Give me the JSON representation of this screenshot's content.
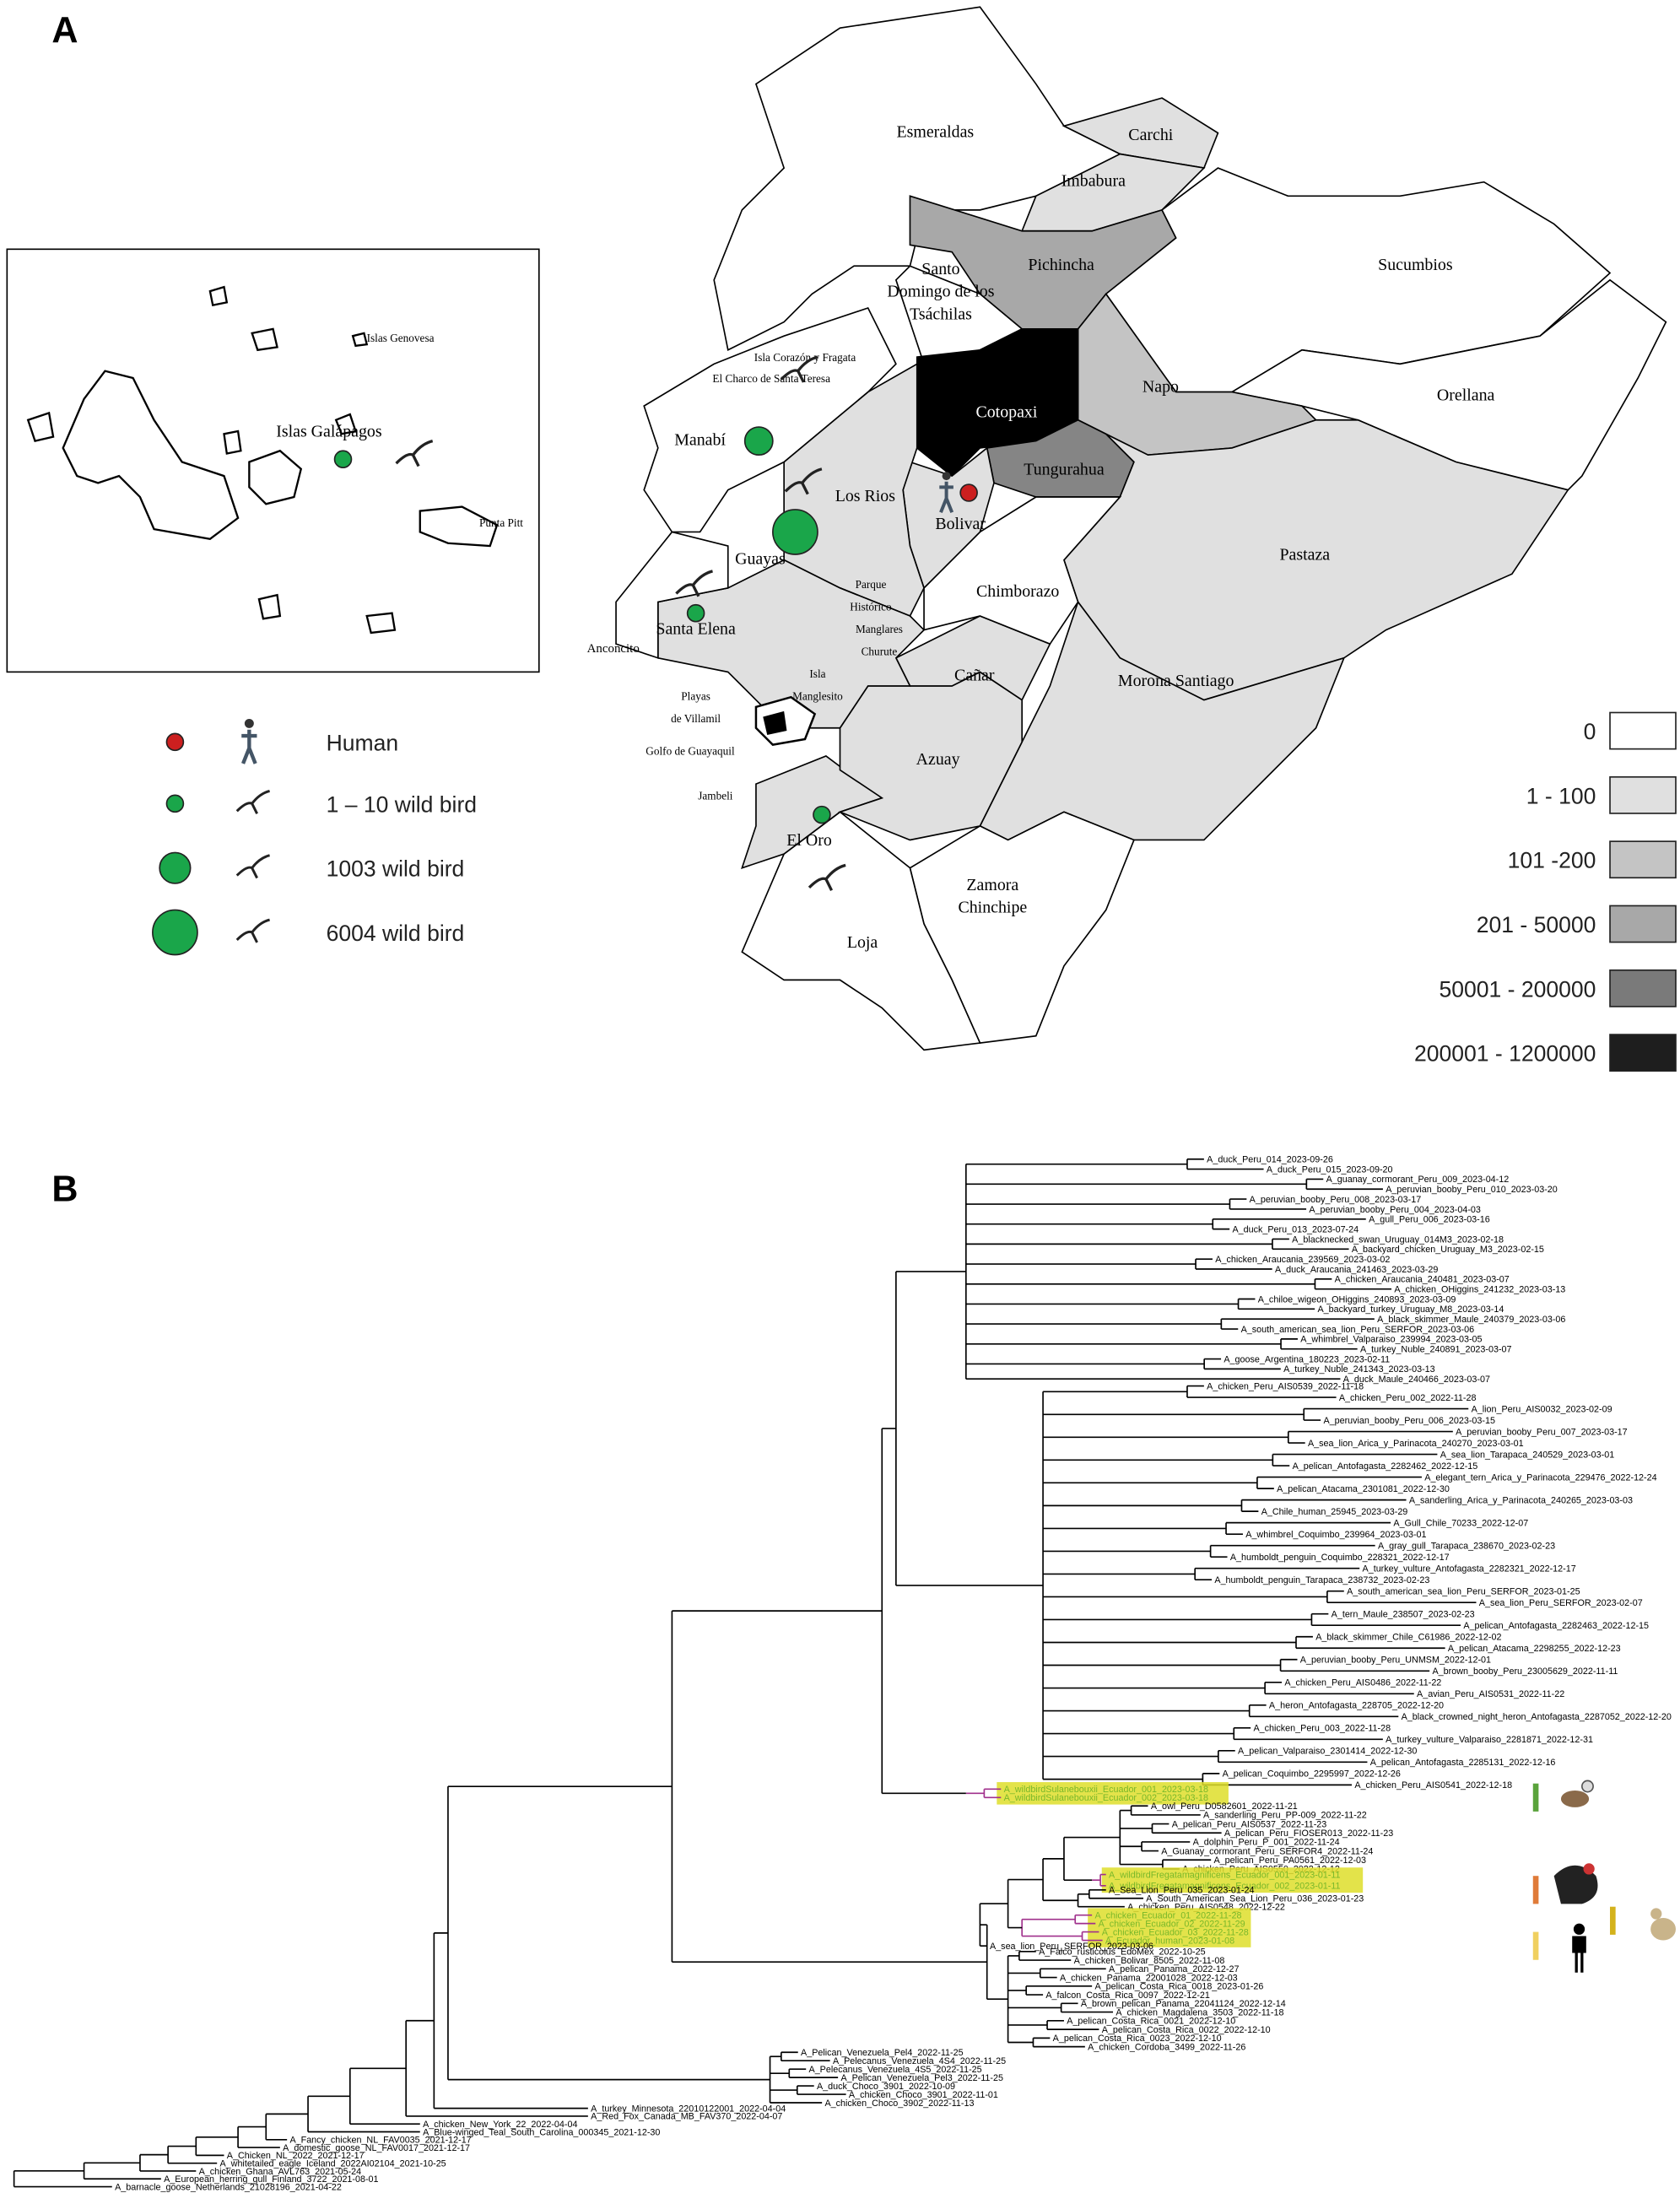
{
  "panels": {
    "a": "A",
    "b": "B"
  },
  "map": {
    "provinces": [
      {
        "name": "Esmeraldas",
        "color": "#ffffff"
      },
      {
        "name": "Carchi",
        "color": "#e0e0e0"
      },
      {
        "name": "Imbabura",
        "color": "#e0e0e0"
      },
      {
        "name": "Pichincha",
        "color": "#a8a8a8"
      },
      {
        "name": "Sucumbios",
        "color": "#ffffff"
      },
      {
        "name": "Orellana",
        "color": "#ffffff"
      },
      {
        "name": "Napo",
        "color": "#c4c4c4"
      },
      {
        "name": [
          "Santo",
          "Domingo de los",
          "Tsáchilas"
        ],
        "color": "#ffffff"
      },
      {
        "name": "Cotopaxi",
        "color": "#000000"
      },
      {
        "name": "Tungurahua",
        "color": "#858585"
      },
      {
        "name": "Pastaza",
        "color": "#e0e0e0"
      },
      {
        "name": "Morona Santiago",
        "color": "#e0e0e0"
      },
      {
        "name": [
          "Zamora",
          "Chinchipe"
        ],
        "color": "#ffffff"
      },
      {
        "name": "Loja",
        "color": "#ffffff"
      },
      {
        "name": "El Oro",
        "color": "#e0e0e0"
      },
      {
        "name": "Azuay",
        "color": "#e0e0e0"
      },
      {
        "name": "Cañar",
        "color": "#e0e0e0"
      },
      {
        "name": "Chimborazo",
        "color": "#ffffff"
      },
      {
        "name": "Bolivar",
        "color": "#e0e0e0"
      },
      {
        "name": "Los Rios",
        "color": "#e0e0e0"
      },
      {
        "name": "Guayas",
        "color": "#e0e0e0"
      },
      {
        "name": "Santa Elena",
        "color": "#ffffff"
      },
      {
        "name": "Manabí",
        "color": "#ffffff"
      }
    ],
    "places": [
      [
        "Isla Corazón  y Fragata"
      ],
      [
        "El Charco de Santa Teresa"
      ],
      [
        "Parque",
        "Histórico"
      ],
      [
        "Manglares",
        "Churute"
      ],
      [
        "Isla",
        "Manglesito"
      ],
      [
        "Playas",
        "de Villamil"
      ],
      [
        "Golfo de Guayaquil"
      ],
      [
        "Jambeli"
      ],
      [
        "Anconcito"
      ],
      [
        "Islas Galápagos"
      ],
      [
        "Islas Genovesa"
      ],
      [
        "Punta Pitt"
      ]
    ],
    "legend_cases": [
      {
        "label": "Human",
        "color": "#cc1f1f"
      },
      {
        "label": "1 – 10 wild bird",
        "color": "#1aa64a"
      },
      {
        "label": "1003 wild bird",
        "color": "#1aa64a"
      },
      {
        "label": "6004 wild bird",
        "color": "#1aa64a"
      }
    ],
    "legend_bins": [
      {
        "label": "0",
        "color": "#ffffff"
      },
      {
        "label": "1 - 100",
        "color": "#e0e0e0"
      },
      {
        "label": "101 -200",
        "color": "#c4c4c4"
      },
      {
        "label": "201 - 50000",
        "color": "#a8a8a8"
      },
      {
        "label": "50001 - 200000",
        "color": "#7a7a7a"
      },
      {
        "label": "200001 - 1200000",
        "color": "#1e1e1e"
      }
    ]
  },
  "tree": {
    "highlight_color": "#78b82a",
    "highlight_fill": "#dede2a",
    "highlight_branch": "#a0308c",
    "clades": [
      {
        "leaves": [
          "A_duck_Peru_014_2023-09-26",
          "A_duck_Peru_015_2023-09-20",
          "A_guanay_cormorant_Peru_009_2023-04-12",
          "A_peruvian_booby_Peru_010_2023-03-20",
          "A_peruvian_booby_Peru_008_2023-03-17",
          "A_peruvian_booby_Peru_004_2023-04-03",
          "A_gull_Peru_006_2023-03-16",
          "A_duck_Peru_013_2023-07-24",
          "A_blacknecked_swan_Uruguay_014M3_2023-02-18",
          "A_backyard_chicken_Uruguay_M3_2023-02-15",
          "A_chicken_Araucania_239569_2023-03-02",
          "A_duck_Araucania_241463_2023-03-29",
          "A_chicken_Araucania_240481_2023-03-07",
          "A_chicken_OHiggins_241232_2023-03-13",
          "A_chiloe_wigeon_OHiggins_240893_2023-03-09",
          "A_backyard_turkey_Uruguay_M8_2023-03-14",
          "A_black_skimmer_Maule_240379_2023-03-06",
          "A_south_american_sea_lion_Peru_SERFOR_2023-03-06",
          "A_whimbrel_Valparaiso_239994_2023-03-05",
          "A_turkey_Nuble_240891_2023-03-07",
          "A_goose_Argentina_180223_2023-02-11",
          "A_turkey_Nuble_241343_2023-03-13",
          "A_duck_Maule_240466_2023-03-07"
        ]
      },
      {
        "leaves": [
          "A_chicken_Peru_AIS0539_2022-11-18",
          "A_chicken_Peru_002_2022-11-28",
          "A_lion_Peru_AIS0032_2023-02-09",
          "A_peruvian_booby_Peru_006_2023-03-15",
          "A_peruvian_booby_Peru_007_2023-03-17",
          "A_sea_lion_Arica_y_Parinacota_240270_2023-03-01",
          "A_sea_lion_Tarapaca_240529_2023-03-01",
          "A_pelican_Antofagasta_2282462_2022-12-15",
          "A_elegant_tern_Arica_y_Parinacota_229476_2022-12-24",
          "A_pelican_Atacama_2301081_2022-12-30",
          "A_sanderling_Arica_y_Parinacota_240265_2023-03-03",
          "A_Chile_human_25945_2023-03-29",
          "A_Gull_Chile_70233_2022-12-07",
          "A_whimbrel_Coquimbo_239964_2023-03-01",
          "A_gray_gull_Tarapaca_238670_2023-02-23",
          "A_humboldt_penguin_Coquimbo_228321_2022-12-17",
          "A_turkey_vulture_Antofagasta_2282321_2022-12-17",
          "A_humboldt_penguin_Tarapaca_238732_2023-02-23",
          "A_south_american_sea_lion_Peru_SERFOR_2023-01-25",
          "A_sea_lion_Peru_SERFOR_2023-02-07",
          "A_tern_Maule_238507_2023-02-23",
          "A_pelican_Antofagasta_2282463_2022-12-15",
          "A_black_skimmer_Chile_C61986_2022-12-02",
          "A_pelican_Atacama_2298255_2022-12-23",
          "A_peruvian_booby_Peru_UNMSM_2022-12-01",
          "A_brown_booby_Peru_23005629_2022-11-11",
          "A_chicken_Peru_AIS0486_2022-11-22",
          "A_avian_Peru_AIS0531_2022-11-22",
          "A_heron_Antofagasta_228705_2022-12-20",
          "A_black_crowned_night_heron_Antofagasta_2287052_2022-12-20",
          "A_chicken_Peru_003_2022-11-28",
          "A_turkey_vulture_Valparaiso_2281871_2022-12-31",
          "A_pelican_Valparaiso_2301414_2022-12-30",
          "A_pelican_Antofagasta_2285131_2022-12-16",
          "A_pelican_Coquimbo_2295997_2022-12-26",
          "A_chicken_Peru_AIS0541_2022-12-18"
        ]
      },
      {
        "highlight": true,
        "leaves": [
          "A_wildbirdSulanebouxii_Ecuador_001_2023-03-18",
          "A_wildbirdSulanebouxii_Ecuador_002_2023-03-18"
        ]
      },
      {
        "leaves": [
          "A_owl_Peru_D0582601_2022-11-21",
          "A_sanderling_Peru_PP-009_2022-11-22",
          "A_pelican_Peru_AIS0537_2022-11-23",
          "A_pelican_Peru_FIOSER013_2022-11-23",
          "A_dolphin_Peru_P_001_2022-11-24",
          "A_Guanay_cormorant_Peru_SERFOR4_2022-11-24",
          "A_pelican_Peru_PA0561_2022-12-03",
          "A_chicken_Peru_AIS0550_2022-12-12"
        ]
      },
      {
        "highlight": true,
        "leaves": [
          "A_wildbirdFregatamagnificens_Ecuador_001_2023-01-11",
          "A_wildbirdFregatamagnificens_Ecuador_002_2023-01-11"
        ]
      },
      {
        "leaves": [
          "A_Sea_Lion_Peru_035_2023-01-24",
          "A_South_American_Sea_Lion_Peru_036_2023-01-23",
          "A_chicken_Peru_AIS0548_2022-12-22"
        ]
      },
      {
        "highlight": true,
        "leaves": [
          "A_chicken_Ecuador_01_2022-11-28",
          "A_chicken_Ecuador_02_2022-11-29",
          "A_chicken_Ecuador_03_2022-11-28",
          "A_Ecuador_human_2023-01-08"
        ]
      },
      {
        "leaves": [
          "A_sea_lion_Peru_SERFOR_2023-03-06"
        ]
      },
      {
        "leaves": [
          "A_Falco_rusticolus_EdoMex_2022-10-25",
          "A_chicken_Bolivar_8505_2022-11-08",
          "A_pelican_Panama_2022-12-27",
          "A_chicken_Panama_22001028_2022-12-03",
          "A_pelican_Costa_Rica_0018_2023-01-26",
          "A_falcon_Costa_Rica_0097_2022-12-21",
          "A_brown_pelican_Panama_22041124_2022-12-14",
          "A_chicken_Magdalena_3503_2022-11-18",
          "A_pelican_Costa_Rica_0021_2022-12-10",
          "A_pelican_Costa_Rica_0022_2022-12-10",
          "A_pelican_Costa_Rica_0023_2022-12-10",
          "A_chicken_Cordoba_3499_2022-11-26"
        ]
      },
      {
        "leaves": [
          "A_Pelican_Venezuela_Pel4_2022-11-25",
          "A_Pelecanus_Venezuela_4S4_2022-11-25",
          "A_Pelecanus_Venezuela_4S5_2022-11-25",
          "A_Pelican_Venezuela_Pel3_2022-11-25",
          "A_duck_Choco_3901_2022-10-09",
          "A_chicken_Choco_3901_2022-11-01",
          "A_chicken_Choco_3902_2022-11-13"
        ]
      },
      {
        "leaves": [
          "A_turkey_Minnesota_22010122001_2022-04-04",
          "A_Red_Fox_Canada_MB_FAV370_2022-04-07",
          "A_chicken_New_York_22_2022-04-04",
          "A_Blue-winged_Teal_South_Carolina_000345_2021-12-30",
          "A_Fancy_chicken_NL_FAV0035_2021-12-17",
          "A_domestic_goose_NL_FAV0017_2021-12-17",
          "A_Chicken_NL_2022_2021-12-17",
          "A_whitetailed_eagle_Iceland_2022AI02104_2021-10-25",
          "A_chicken_Ghana_AVL763_2021-05-24",
          "A_European_herring_gull_Finland_3722_2021-08-01",
          "A_barnacle_goose_Netherlands_21028196_2021-04-22"
        ]
      }
    ]
  }
}
